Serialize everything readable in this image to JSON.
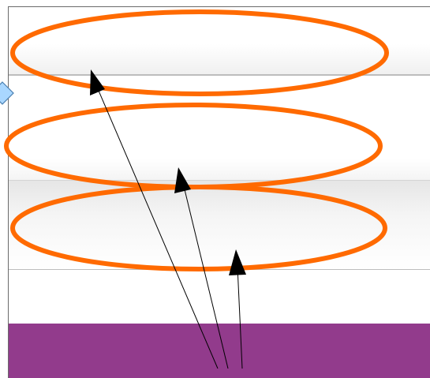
{
  "colors": {
    "highlight": "#ff6a00",
    "footer": "#923b8c",
    "marker_fill": "#a9d7ff",
    "marker_stroke": "#4a7fb0",
    "arrow": "#000000"
  },
  "rows": [
    {
      "label": ""
    },
    {
      "label": ""
    },
    {
      "label": ""
    },
    {
      "label": ""
    }
  ],
  "icons": {
    "marker": "diamond-marker-icon",
    "arrowhead": "arrowhead-icon"
  }
}
